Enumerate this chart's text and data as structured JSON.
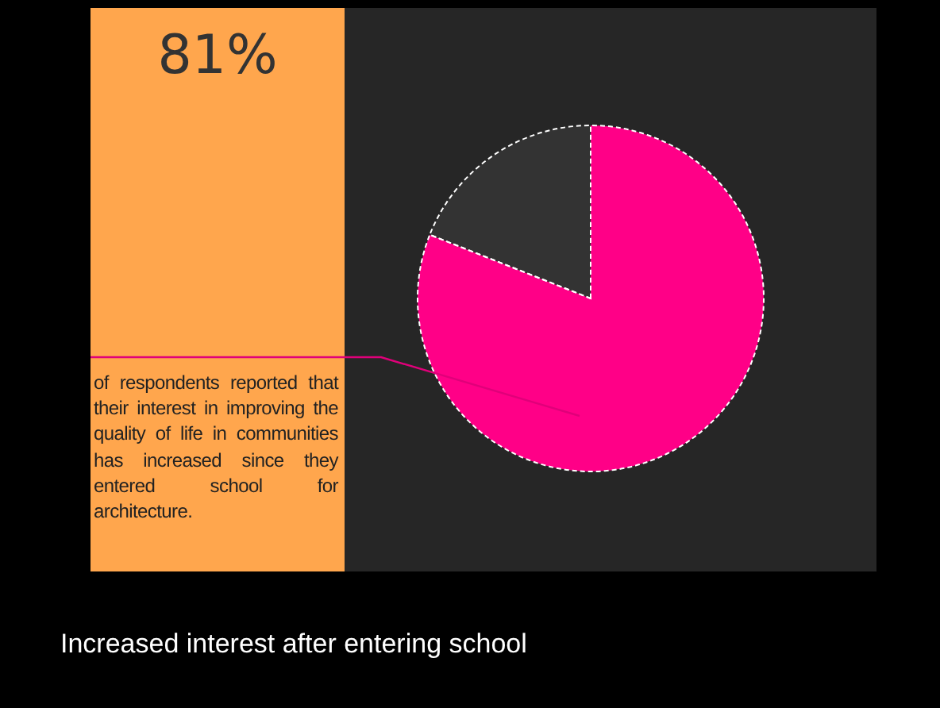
{
  "chart_data": {
    "type": "pie",
    "title": "Increased interest after entering school",
    "categories": [
      null,
      null
    ],
    "values": [
      81,
      19
    ],
    "colors": [
      "#ff0087",
      "#333333"
    ],
    "annotations": [
      "81%",
      "of respondents reported that their interest in improving the quality of life in communities has increased since they entered school for architecture."
    ]
  }
}
